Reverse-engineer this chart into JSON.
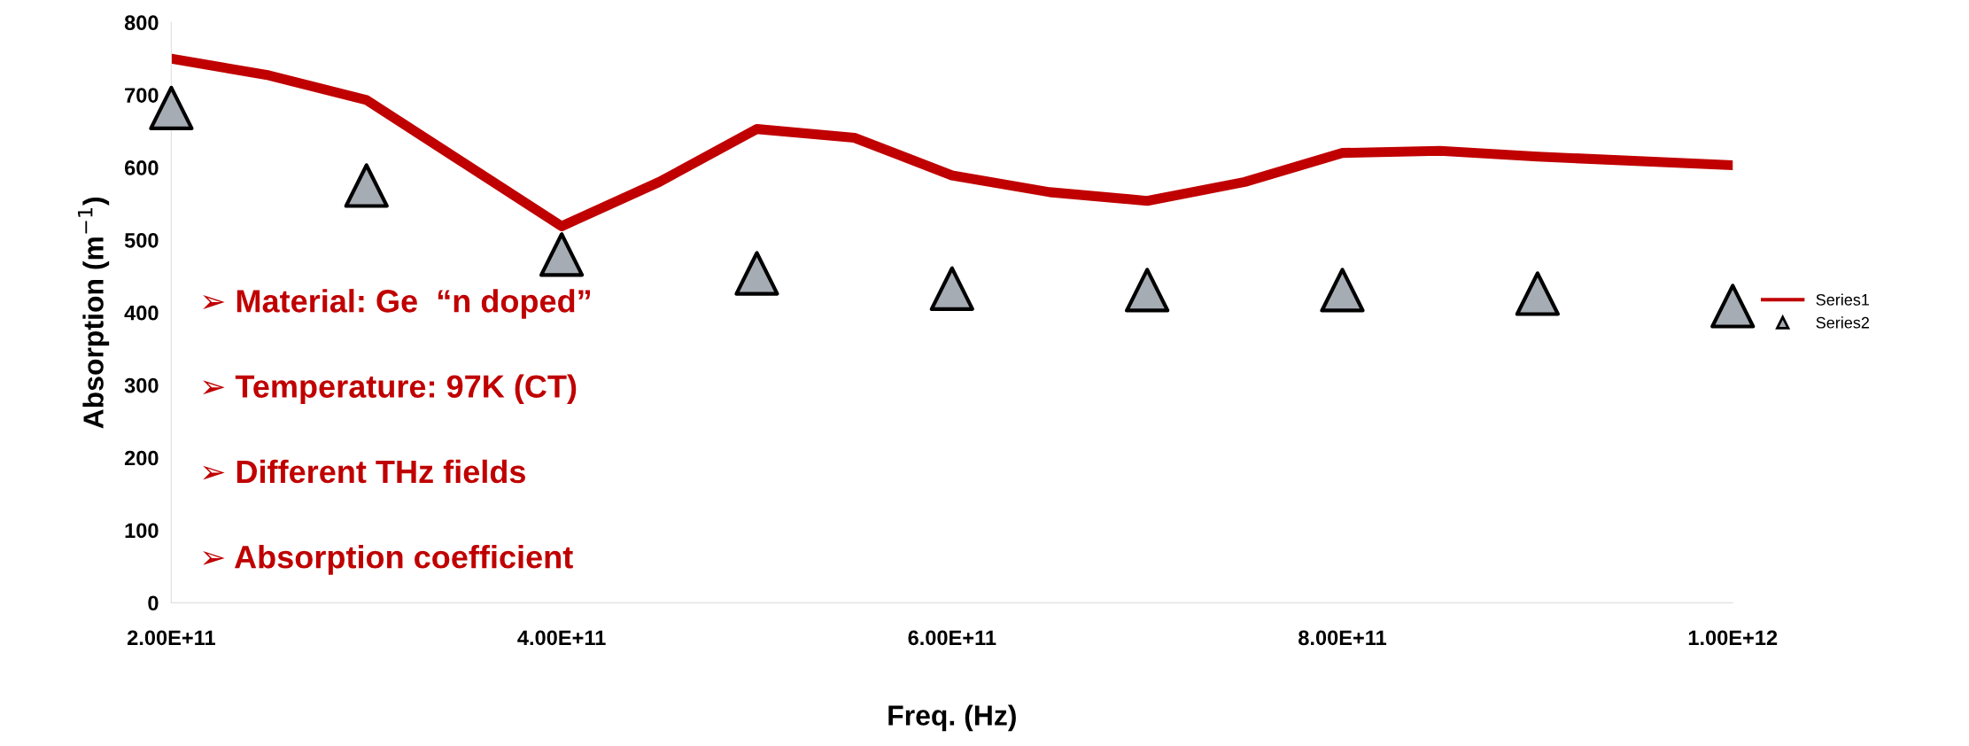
{
  "chart_data": {
    "type": "line",
    "xlabel": "Freq. (Hz)",
    "ylabel": "Absorption (m$^{−1}$)",
    "xlim": [
      200000000000.0,
      1000000000000.0
    ],
    "xticks": [
      {
        "value": 200000000000.0,
        "label": "2.00E+11"
      },
      {
        "value": 400000000000.0,
        "label": "4.00E+11"
      },
      {
        "value": 600000000000.0,
        "label": "6.00E+11"
      },
      {
        "value": 800000000000.0,
        "label": "8.00E+11"
      },
      {
        "value": 1000000000000.0,
        "label": "1.00E+12"
      }
    ],
    "ylim": [
      0,
      800
    ],
    "yticks": [
      0,
      100,
      200,
      300,
      400,
      500,
      600,
      700,
      800
    ],
    "grid": false,
    "legend": "right",
    "series": [
      {
        "name": "Series1",
        "color": "#c00000",
        "marker": "none",
        "line_style": "solid",
        "x": [
          200000000000.0,
          250000000000.0,
          300000000000.0,
          350000000000.0,
          400000000000.0,
          450000000000.0,
          500000000000.0,
          550000000000.0,
          600000000000.0,
          650000000000.0,
          700000000000.0,
          750000000000.0,
          800000000000.0,
          850000000000.0,
          900000000000.0,
          1000000000000.0
        ],
        "values": [
          750,
          727,
          693,
          606,
          519,
          580,
          653,
          641,
          589,
          566,
          554,
          580,
          620,
          623,
          615,
          603
        ]
      },
      {
        "name": "Series2",
        "type": "scatter",
        "color": "#a6acb4",
        "marker": "triangle",
        "x": [
          200000000000.0,
          300000000000.0,
          400000000000.0,
          500000000000.0,
          600000000000.0,
          700000000000.0,
          800000000000.0,
          900000000000.0,
          1000000000000.0
        ],
        "values": [
          682,
          575,
          480,
          454,
          433,
          431,
          431,
          426,
          409
        ]
      }
    ],
    "annotations": [
      "➢ Material: Ge  “n doped”",
      "➢ Temperature: 97K (CT)",
      "➢ Different THz fields",
      "➢ Absorption coefficient"
    ]
  }
}
